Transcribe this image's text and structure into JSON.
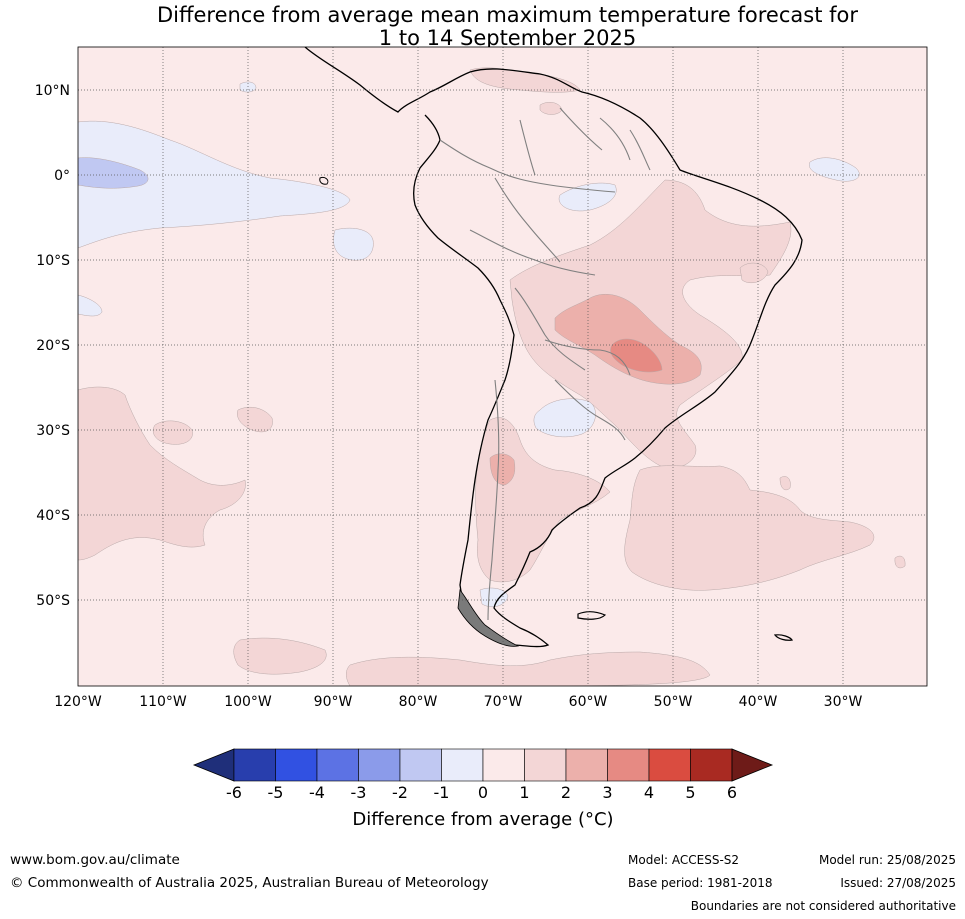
{
  "title": {
    "line1": "Difference from average mean maximum temperature forecast for",
    "line2": "1 to 14 September 2025"
  },
  "map": {
    "lat_labels": [
      "10°N",
      "0°",
      "10°S",
      "20°S",
      "30°S",
      "40°S",
      "50°S"
    ],
    "lon_labels": [
      "120°W",
      "110°W",
      "100°W",
      "90°W",
      "80°W",
      "70°W",
      "60°W",
      "50°W",
      "40°W",
      "30°W"
    ],
    "background_anomaly": "0 to 1",
    "colors": {
      "m1_0": "#e9ecfa",
      "m2_m1": "#c0c8f2",
      "p0_1": "#fbeaea",
      "p1_2": "#f3d6d6",
      "p2_3": "#ecb0ab",
      "p3_4": "#e68a83",
      "coast": "#000000",
      "border": "#808080"
    }
  },
  "colorbar": {
    "ticks": [
      "-6",
      "-5",
      "-4",
      "-3",
      "-2",
      "-1",
      "0",
      "1",
      "2",
      "3",
      "4",
      "5",
      "6"
    ],
    "colors": [
      "#1f2f7a",
      "#283ead",
      "#3151e2",
      "#5c72e4",
      "#8b9bea",
      "#c0c8f2",
      "#e9ecfa",
      "#fbeaea",
      "#f3d6d6",
      "#ecb0ab",
      "#e68a83",
      "#da4c40",
      "#a92a22",
      "#6e1b18"
    ],
    "label": "Difference from average (°C)"
  },
  "footer": {
    "website": "www.bom.gov.au/climate",
    "copyright": "© Commonwealth of Australia 2025, Australian Bureau of Meteorology",
    "model": "Model: ACCESS-S2",
    "base_period": "Base period: 1981-2018",
    "model_run": "Model run: 25/08/2025",
    "issued": "Issued: 27/08/2025",
    "disclaimer": "Boundaries are not considered authoritative"
  }
}
